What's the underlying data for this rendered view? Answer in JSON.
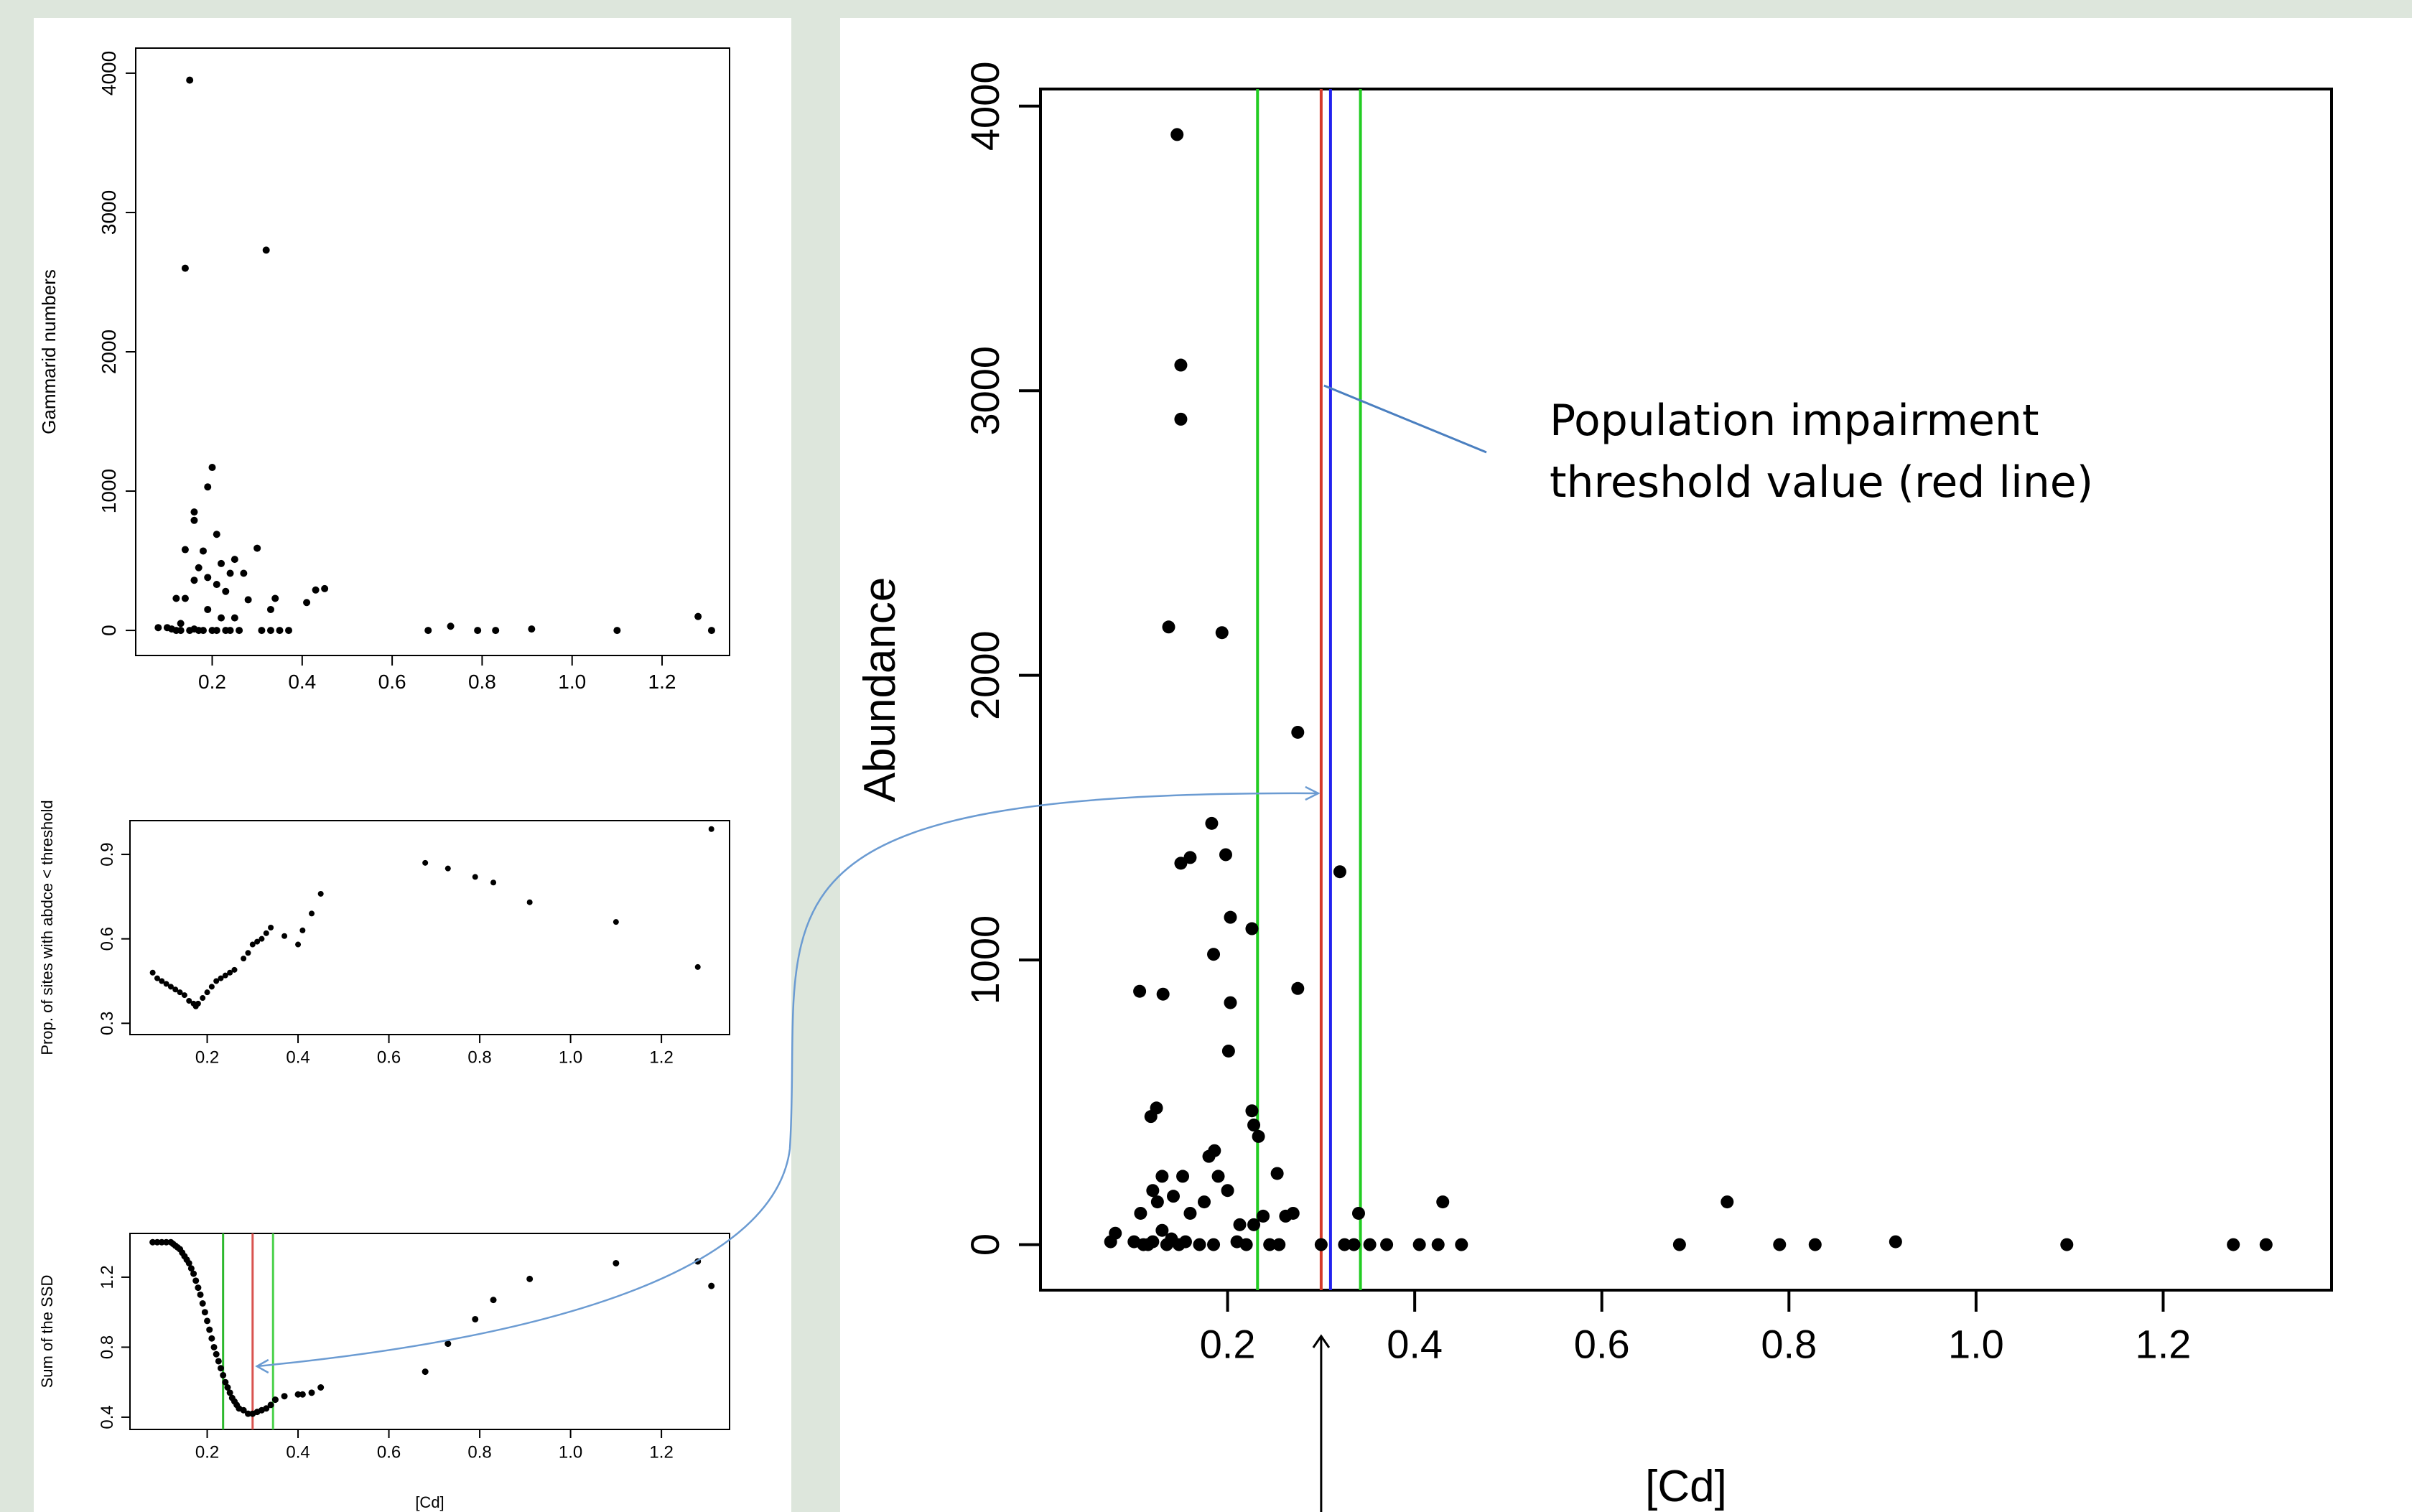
{
  "chart_data": [
    {
      "id": "top_left",
      "type": "scatter",
      "title": "",
      "xlabel": "",
      "ylabel": "Gammarid numbers",
      "xlim": [
        0.03,
        1.35
      ],
      "ylim": [
        -180,
        4180
      ],
      "xticks": [
        0.2,
        0.4,
        0.6,
        0.8,
        1.0,
        1.2
      ],
      "xtick_labels": [
        "0.2",
        "0.4",
        "0.6",
        "0.8",
        "1.0",
        "1.2"
      ],
      "yticks": [
        0,
        1000,
        2000,
        3000,
        4000
      ],
      "ytick_labels": [
        "0",
        "1000",
        "2000",
        "3000",
        "4000"
      ],
      "grid": false,
      "points": [
        [
          0.15,
          3950
        ],
        [
          0.14,
          2600
        ],
        [
          0.32,
          2730
        ],
        [
          0.2,
          1170
        ],
        [
          0.19,
          1030
        ],
        [
          0.21,
          690
        ],
        [
          0.16,
          850
        ],
        [
          0.16,
          790
        ],
        [
          0.14,
          580
        ],
        [
          0.3,
          590
        ],
        [
          0.25,
          510
        ],
        [
          0.18,
          570
        ],
        [
          0.22,
          480
        ],
        [
          0.17,
          450
        ],
        [
          0.24,
          410
        ],
        [
          0.27,
          410
        ],
        [
          0.19,
          380
        ],
        [
          0.16,
          360
        ],
        [
          0.21,
          330
        ],
        [
          0.23,
          280
        ],
        [
          0.45,
          300
        ],
        [
          0.43,
          290
        ],
        [
          0.12,
          230
        ],
        [
          0.14,
          230
        ],
        [
          0.28,
          220
        ],
        [
          0.34,
          230
        ],
        [
          0.41,
          200
        ],
        [
          0.19,
          150
        ],
        [
          0.22,
          90
        ],
        [
          0.25,
          90
        ],
        [
          0.13,
          50
        ],
        [
          0.33,
          150
        ],
        [
          0.1,
          20
        ],
        [
          0.11,
          10
        ],
        [
          0.08,
          20
        ],
        [
          0.12,
          0
        ],
        [
          0.13,
          0
        ],
        [
          0.15,
          0
        ],
        [
          0.16,
          10
        ],
        [
          0.17,
          0
        ],
        [
          0.18,
          0
        ],
        [
          0.2,
          0
        ],
        [
          0.21,
          0
        ],
        [
          0.23,
          0
        ],
        [
          0.24,
          0
        ],
        [
          0.26,
          0
        ],
        [
          0.31,
          0
        ],
        [
          0.33,
          0
        ],
        [
          0.35,
          0
        ],
        [
          0.37,
          0
        ],
        [
          0.68,
          0
        ],
        [
          0.73,
          30
        ],
        [
          0.79,
          0
        ],
        [
          0.83,
          0
        ],
        [
          0.91,
          10
        ],
        [
          1.1,
          0
        ],
        [
          1.28,
          100
        ],
        [
          1.31,
          0
        ]
      ]
    },
    {
      "id": "middle_left",
      "type": "scatter",
      "title": "",
      "xlabel": "",
      "ylabel": "Prop. of sites with abdce < threshold",
      "xlim": [
        0.03,
        1.35
      ],
      "ylim": [
        0.26,
        1.02
      ],
      "xticks": [
        0.2,
        0.4,
        0.6,
        0.8,
        1.0,
        1.2
      ],
      "xtick_labels": [
        "0.2",
        "0.4",
        "0.6",
        "0.8",
        "1.0",
        "1.2"
      ],
      "yticks": [
        0.3,
        0.6,
        0.9
      ],
      "ytick_labels": [
        "0.3",
        "0.6",
        "0.9"
      ],
      "grid": false,
      "points": [
        [
          0.08,
          0.48
        ],
        [
          0.09,
          0.46
        ],
        [
          0.1,
          0.45
        ],
        [
          0.11,
          0.44
        ],
        [
          0.12,
          0.43
        ],
        [
          0.13,
          0.42
        ],
        [
          0.14,
          0.41
        ],
        [
          0.15,
          0.4
        ],
        [
          0.16,
          0.38
        ],
        [
          0.17,
          0.37
        ],
        [
          0.175,
          0.36
        ],
        [
          0.18,
          0.37
        ],
        [
          0.19,
          0.39
        ],
        [
          0.2,
          0.41
        ],
        [
          0.21,
          0.43
        ],
        [
          0.22,
          0.45
        ],
        [
          0.23,
          0.46
        ],
        [
          0.24,
          0.47
        ],
        [
          0.25,
          0.48
        ],
        [
          0.26,
          0.49
        ],
        [
          0.28,
          0.53
        ],
        [
          0.29,
          0.55
        ],
        [
          0.3,
          0.58
        ],
        [
          0.31,
          0.59
        ],
        [
          0.32,
          0.6
        ],
        [
          0.33,
          0.62
        ],
        [
          0.34,
          0.64
        ],
        [
          0.37,
          0.61
        ],
        [
          0.4,
          0.58
        ],
        [
          0.41,
          0.63
        ],
        [
          0.43,
          0.69
        ],
        [
          0.45,
          0.76
        ],
        [
          0.68,
          0.87
        ],
        [
          0.73,
          0.85
        ],
        [
          0.79,
          0.82
        ],
        [
          0.83,
          0.8
        ],
        [
          0.91,
          0.73
        ],
        [
          1.1,
          0.66
        ],
        [
          1.28,
          0.5
        ],
        [
          1.31,
          0.99
        ]
      ]
    },
    {
      "id": "bottom_left",
      "type": "scatter",
      "title": "",
      "xlabel": "[Cd]",
      "ylabel": "Sum of the SSD",
      "xlim": [
        0.03,
        1.35
      ],
      "ylim": [
        0.33,
        1.45
      ],
      "xticks": [
        0.2,
        0.4,
        0.6,
        0.8,
        1.0,
        1.2
      ],
      "xtick_labels": [
        "0.2",
        "0.4",
        "0.6",
        "0.8",
        "1.0",
        "1.2"
      ],
      "yticks": [
        0.4,
        0.8,
        1.2
      ],
      "ytick_labels": [
        "0.4",
        "0.8",
        "1.2"
      ],
      "grid": false,
      "vlines": [
        {
          "x": 0.235,
          "color": "#2db82d"
        },
        {
          "x": 0.3,
          "color": "#d9534f"
        },
        {
          "x": 0.345,
          "color": "#4cd24c"
        }
      ],
      "points": [
        [
          0.08,
          1.4
        ],
        [
          0.09,
          1.4
        ],
        [
          0.1,
          1.4
        ],
        [
          0.11,
          1.4
        ],
        [
          0.12,
          1.4
        ],
        [
          0.125,
          1.39
        ],
        [
          0.13,
          1.38
        ],
        [
          0.135,
          1.37
        ],
        [
          0.14,
          1.36
        ],
        [
          0.145,
          1.34
        ],
        [
          0.15,
          1.32
        ],
        [
          0.155,
          1.3
        ],
        [
          0.16,
          1.28
        ],
        [
          0.165,
          1.25
        ],
        [
          0.17,
          1.22
        ],
        [
          0.175,
          1.18
        ],
        [
          0.18,
          1.14
        ],
        [
          0.185,
          1.1
        ],
        [
          0.19,
          1.05
        ],
        [
          0.195,
          1.0
        ],
        [
          0.2,
          0.95
        ],
        [
          0.205,
          0.9
        ],
        [
          0.21,
          0.85
        ],
        [
          0.215,
          0.8
        ],
        [
          0.22,
          0.76
        ],
        [
          0.225,
          0.72
        ],
        [
          0.23,
          0.68
        ],
        [
          0.235,
          0.64
        ],
        [
          0.24,
          0.6
        ],
        [
          0.245,
          0.57
        ],
        [
          0.25,
          0.54
        ],
        [
          0.255,
          0.51
        ],
        [
          0.26,
          0.49
        ],
        [
          0.265,
          0.47
        ],
        [
          0.27,
          0.45
        ],
        [
          0.28,
          0.44
        ],
        [
          0.29,
          0.42
        ],
        [
          0.3,
          0.42
        ],
        [
          0.31,
          0.43
        ],
        [
          0.32,
          0.44
        ],
        [
          0.33,
          0.45
        ],
        [
          0.34,
          0.47
        ],
        [
          0.35,
          0.5
        ],
        [
          0.37,
          0.52
        ],
        [
          0.4,
          0.53
        ],
        [
          0.41,
          0.53
        ],
        [
          0.43,
          0.54
        ],
        [
          0.45,
          0.57
        ],
        [
          0.68,
          0.66
        ],
        [
          0.73,
          0.82
        ],
        [
          0.79,
          0.96
        ],
        [
          0.83,
          1.07
        ],
        [
          0.91,
          1.19
        ],
        [
          1.1,
          1.28
        ],
        [
          1.28,
          1.29
        ],
        [
          1.31,
          1.15
        ]
      ]
    },
    {
      "id": "main",
      "type": "scatter",
      "title": "",
      "xlabel": "[Cd]",
      "ylabel": "Abundance",
      "xlim": [
        0.0,
        1.38
      ],
      "ylim": [
        -160,
        4060
      ],
      "xticks": [
        0.2,
        0.4,
        0.6,
        0.8,
        1.0,
        1.2
      ],
      "xtick_labels": [
        "0.2",
        "0.4",
        "0.6",
        "0.8",
        "1.0",
        "1.2"
      ],
      "yticks": [
        0,
        1000,
        2000,
        3000,
        4000
      ],
      "ytick_labels": [
        "0",
        "1000",
        "2000",
        "3000",
        "4000"
      ],
      "grid": false,
      "vlines": [
        {
          "x": 0.232,
          "color": "#22cc22"
        },
        {
          "x": 0.3,
          "color": "#d43a2a"
        },
        {
          "x": 0.31,
          "color": "#2222ee"
        },
        {
          "x": 0.342,
          "color": "#22cc22"
        }
      ],
      "points": [
        [
          0.146,
          3900
        ],
        [
          0.15,
          3090
        ],
        [
          0.15,
          2900
        ],
        [
          0.137,
          2170
        ],
        [
          0.194,
          2150
        ],
        [
          0.275,
          1800
        ],
        [
          0.183,
          1480
        ],
        [
          0.15,
          1340
        ],
        [
          0.16,
          1360
        ],
        [
          0.198,
          1370
        ],
        [
          0.32,
          1310
        ],
        [
          0.203,
          1150
        ],
        [
          0.226,
          1110
        ],
        [
          0.185,
          1020
        ],
        [
          0.106,
          890
        ],
        [
          0.131,
          880
        ],
        [
          0.203,
          850
        ],
        [
          0.275,
          900
        ],
        [
          0.201,
          680
        ],
        [
          0.124,
          480
        ],
        [
          0.118,
          450
        ],
        [
          0.226,
          470
        ],
        [
          0.228,
          420
        ],
        [
          0.233,
          380
        ],
        [
          0.186,
          330
        ],
        [
          0.18,
          310
        ],
        [
          0.13,
          240
        ],
        [
          0.152,
          240
        ],
        [
          0.253,
          250
        ],
        [
          0.19,
          240
        ],
        [
          0.12,
          190
        ],
        [
          0.2,
          190
        ],
        [
          0.142,
          170
        ],
        [
          0.175,
          150
        ],
        [
          0.125,
          150
        ],
        [
          0.16,
          110
        ],
        [
          0.107,
          110
        ],
        [
          0.238,
          100
        ],
        [
          0.262,
          100
        ],
        [
          0.27,
          110
        ],
        [
          0.34,
          110
        ],
        [
          0.43,
          150
        ],
        [
          0.213,
          70
        ],
        [
          0.228,
          70
        ],
        [
          0.13,
          50
        ],
        [
          0.08,
          40
        ],
        [
          0.075,
          10
        ],
        [
          0.1,
          10
        ],
        [
          0.11,
          0
        ],
        [
          0.115,
          0
        ],
        [
          0.12,
          10
        ],
        [
          0.135,
          0
        ],
        [
          0.14,
          20
        ],
        [
          0.148,
          0
        ],
        [
          0.155,
          10
        ],
        [
          0.17,
          0
        ],
        [
          0.185,
          0
        ],
        [
          0.21,
          10
        ],
        [
          0.22,
          0
        ],
        [
          0.245,
          0
        ],
        [
          0.255,
          0
        ],
        [
          0.3,
          0
        ],
        [
          0.325,
          0
        ],
        [
          0.335,
          0
        ],
        [
          0.352,
          0
        ],
        [
          0.37,
          0
        ],
        [
          0.405,
          0
        ],
        [
          0.425,
          0
        ],
        [
          0.45,
          0
        ],
        [
          0.683,
          0
        ],
        [
          0.734,
          150
        ],
        [
          0.79,
          0
        ],
        [
          0.828,
          0
        ],
        [
          0.914,
          10
        ],
        [
          1.097,
          0
        ],
        [
          1.275,
          0
        ],
        [
          1.31,
          0
        ]
      ]
    }
  ],
  "annotations": {
    "threshold_line1": "Population impairment",
    "threshold_line2": "threshold value (red line)"
  }
}
